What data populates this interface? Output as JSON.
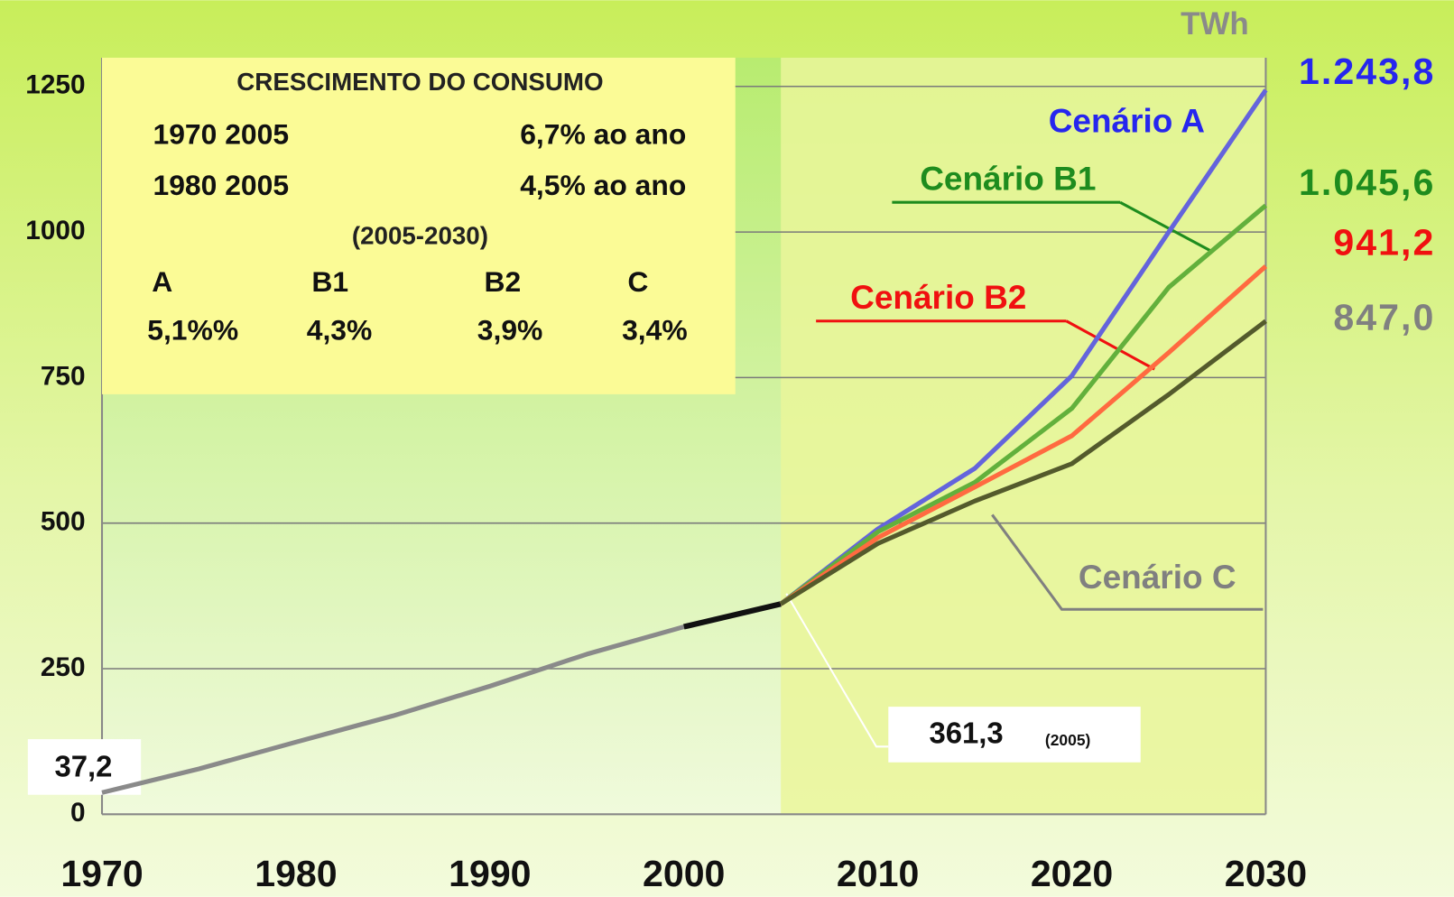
{
  "chart_data": {
    "type": "line",
    "unit_label": "TWh",
    "x": [
      1970,
      1975,
      1980,
      1985,
      1990,
      1995,
      2000,
      2005,
      2010,
      2015,
      2020,
      2025,
      2030
    ],
    "series": [
      {
        "color": "#8a8a8a",
        "values": [
          37.2,
          78,
          124,
          169,
          220,
          275,
          322,
          null,
          null,
          null,
          null,
          null,
          null
        ],
        "value_labels": [
          "37,2",
          null,
          null,
          null,
          null,
          null,
          null,
          null,
          null,
          null,
          null,
          null,
          null
        ]
      },
      {
        "color": "#111111",
        "values": [
          null,
          null,
          null,
          null,
          null,
          null,
          322,
          361.3,
          null,
          null,
          null,
          null,
          null
        ],
        "value_labels": [
          null,
          null,
          null,
          null,
          null,
          null,
          null,
          "361,3",
          null,
          null,
          null,
          null,
          null
        ]
      },
      {
        "name": "Cenário A",
        "color": "#6464dc",
        "label_color": "#2626ee",
        "values": [
          null,
          null,
          null,
          null,
          null,
          null,
          null,
          361.3,
          490,
          594,
          753,
          1000,
          1243.8
        ],
        "value_labels": [
          null,
          null,
          null,
          null,
          null,
          null,
          null,
          null,
          null,
          null,
          null,
          null,
          "1.243,8"
        ]
      },
      {
        "name": "Cenário B1",
        "color": "#62b03c",
        "label_color": "#1e8c1e",
        "values": [
          null,
          null,
          null,
          null,
          null,
          null,
          null,
          361.3,
          485,
          570,
          697,
          905,
          1045.6
        ],
        "value_labels": [
          null,
          null,
          null,
          null,
          null,
          null,
          null,
          null,
          null,
          null,
          null,
          null,
          "1.045,6"
        ]
      },
      {
        "name": "Cenário B2",
        "color": "#ff6a40",
        "label_color": "#f01010",
        "values": [
          null,
          null,
          null,
          null,
          null,
          null,
          null,
          361.3,
          475,
          562,
          650,
          793,
          941.2
        ],
        "value_labels": [
          null,
          null,
          null,
          null,
          null,
          null,
          null,
          null,
          null,
          null,
          null,
          null,
          "941,2"
        ]
      },
      {
        "name": "Cenário C",
        "color": "#545a2c",
        "label_color": "#808080",
        "values": [
          null,
          null,
          null,
          null,
          null,
          null,
          null,
          361.3,
          465,
          538,
          602,
          721,
          847.0
        ],
        "value_labels": [
          null,
          null,
          null,
          null,
          null,
          null,
          null,
          null,
          null,
          null,
          null,
          null,
          "847,0"
        ]
      }
    ],
    "note_2005": "(2005)",
    "xlim": [
      1970,
      2030
    ],
    "xticks": [
      1970,
      1980,
      1990,
      2000,
      2010,
      2020,
      2030
    ],
    "ylim": [
      0,
      1250
    ],
    "yticks": [
      0,
      250,
      500,
      750,
      1000,
      1250
    ],
    "grid": true,
    "info_box": {
      "title": "CRESCIMENTO DO CONSUMO",
      "rows": [
        [
          "1970 2005",
          "6,7% ao ano"
        ],
        [
          "1980 2005",
          "4,5% ao ano"
        ]
      ],
      "subtitle": "(2005-2030)",
      "scenarios": [
        "A",
        "B1",
        "B2",
        "C"
      ],
      "rates": [
        "5,1%%",
        "4,3%",
        "3,9%",
        "3,4%"
      ]
    }
  }
}
